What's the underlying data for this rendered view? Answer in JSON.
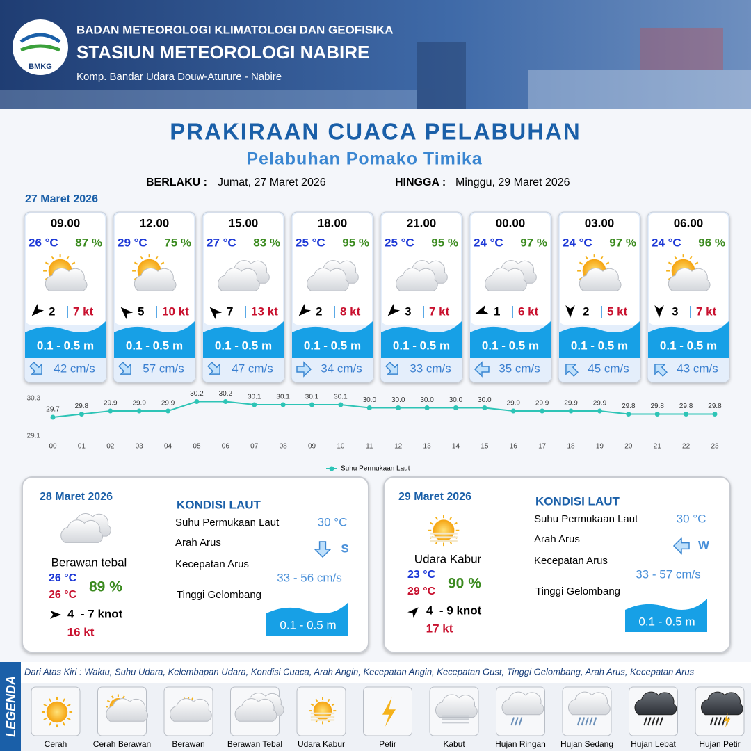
{
  "header": {
    "logo": "BMKG",
    "agency": "BADAN METEOROLOGI KLIMATOLOGI DAN GEOFISIKA",
    "station": "STASIUN METEOROLOGI NABIRE",
    "address": "Komp. Bandar Udara Douw-Aturure - Nabire"
  },
  "title": "PRAKIRAAN CUACA PELABUHAN",
  "subtitle": "Pelabuhan Pomako Timika",
  "validity": {
    "from_label": "BERLAKU :",
    "from": "Jumat, 27 Maret 2026",
    "to_label": "HINGGA :",
    "to": "Minggu, 29 Maret 2026"
  },
  "day1_date": "27 Maret 2026",
  "forecasts": [
    {
      "time": "09.00",
      "temp": "26 °C",
      "humidity": "87 %",
      "condition": "Cerah Berawan",
      "wind": "2",
      "gust": "7 kt",
      "wave": "0.1 - 0.5 m",
      "current": "42 cm/s"
    },
    {
      "time": "12.00",
      "temp": "29 °C",
      "humidity": "75 %",
      "condition": "Cerah Berawan",
      "wind": "5",
      "gust": "10 kt",
      "wave": "0.1 - 0.5 m",
      "current": "57 cm/s"
    },
    {
      "time": "15.00",
      "temp": "27 °C",
      "humidity": "83 %",
      "condition": "Berawan Tebal",
      "wind": "7",
      "gust": "13 kt",
      "wave": "0.1 - 0.5 m",
      "current": "47 cm/s"
    },
    {
      "time": "18.00",
      "temp": "25 °C",
      "humidity": "95 %",
      "condition": "Berawan Tebal",
      "wind": "2",
      "gust": "8 kt",
      "wave": "0.1 - 0.5 m",
      "current": "34 cm/s"
    },
    {
      "time": "21.00",
      "temp": "25 °C",
      "humidity": "95 %",
      "condition": "Berawan Tebal",
      "wind": "3",
      "gust": "7 kt",
      "wave": "0.1 - 0.5 m",
      "current": "33 cm/s"
    },
    {
      "time": "00.00",
      "temp": "24 °C",
      "humidity": "97 %",
      "condition": "Berawan Tebal",
      "wind": "1",
      "gust": "6 kt",
      "wave": "0.1 - 0.5 m",
      "current": "35 cm/s"
    },
    {
      "time": "03.00",
      "temp": "24 °C",
      "humidity": "97 %",
      "condition": "Cerah Berawan",
      "wind": "2",
      "gust": "5 kt",
      "wave": "0.1 - 0.5 m",
      "current": "45 cm/s"
    },
    {
      "time": "06.00",
      "temp": "24 °C",
      "humidity": "96 %",
      "condition": "Cerah Berawan",
      "wind": "3",
      "gust": "7 kt",
      "wave": "0.1 - 0.5 m",
      "current": "43 cm/s"
    }
  ],
  "chart_data": {
    "type": "line",
    "categories": [
      "00",
      "01",
      "02",
      "03",
      "04",
      "05",
      "06",
      "07",
      "08",
      "09",
      "10",
      "11",
      "12",
      "13",
      "14",
      "15",
      "16",
      "17",
      "18",
      "19",
      "20",
      "21",
      "22",
      "23"
    ],
    "series": [
      {
        "name": "Suhu Permukaan Laut",
        "color": "#2ec4b6",
        "values": [
          29.7,
          29.8,
          29.9,
          29.9,
          29.9,
          30.2,
          30.2,
          30.1,
          30.1,
          30.1,
          30.1,
          30.0,
          30.0,
          30.0,
          30.0,
          30.0,
          29.9,
          29.9,
          29.9,
          29.9,
          29.8,
          29.8,
          29.8,
          29.8
        ],
        "value_labels": [
          "29.7",
          "29.8",
          "29.9",
          "29.9",
          "29.9",
          "30.2",
          "30.2",
          "30.1",
          "30.1",
          "30.1",
          "30.1",
          "30.0",
          "30.0",
          "30.0",
          "30.0",
          "30.0",
          "29.9",
          "29.9",
          "29.9",
          "29.9",
          "29.8",
          "29.8",
          "29.8",
          "29.8"
        ]
      }
    ],
    "ylim": [
      29.1,
      30.3
    ],
    "yticks": [
      29.1,
      30.3
    ]
  },
  "days": [
    {
      "date": "28 Maret 2026",
      "condition": "Berawan tebal",
      "temp_min": "26 °C",
      "temp_max": "26 °C",
      "humidity": "89 %",
      "wind": "4  - 7 knot",
      "gust": "16 kt",
      "sea_title": "KONDISI LAUT",
      "sst_label": "Suhu Permukaan Laut",
      "sst": "30 °C",
      "dir_label": "Arah Arus",
      "current_dir": "S",
      "speed_label": "Kecepatan Arus",
      "current_speed": "33 - 56 cm/s",
      "wave_label": "Tinggi Gelombang",
      "wave": "0.1 - 0.5 m"
    },
    {
      "date": "29 Maret 2026",
      "condition": "Udara Kabur",
      "temp_min": "23 °C",
      "temp_max": "29 °C",
      "humidity": "90 %",
      "wind": "4  - 9 knot",
      "gust": "17 kt",
      "sea_title": "KONDISI LAUT",
      "sst_label": "Suhu Permukaan Laut",
      "sst": "30 °C",
      "dir_label": "Arah Arus",
      "current_dir": "W",
      "speed_label": "Kecepatan Arus",
      "current_speed": "33 - 57 cm/s",
      "wave_label": "Tinggi Gelombang",
      "wave": "0.1 - 0.5 m"
    }
  ],
  "legend": {
    "title": "LEGENDA",
    "description": "Dari Atas Kiri : Waktu, Suhu Udara, Kelembapan Udara, Kondisi Cuaca, Arah Angin, Kecepatan Angin, Kecepatan Gust, Tinggi Gelombang, Arah Arus, Kecepatan Arus",
    "items": [
      "Cerah",
      "Cerah Berawan",
      "Berawan",
      "Berawan Tebal",
      "Udara Kabur",
      "Petir",
      "Kabut",
      "Hujan Ringan",
      "Hujan Sedang",
      "Hujan Lebat",
      "Hujan Petir"
    ]
  }
}
